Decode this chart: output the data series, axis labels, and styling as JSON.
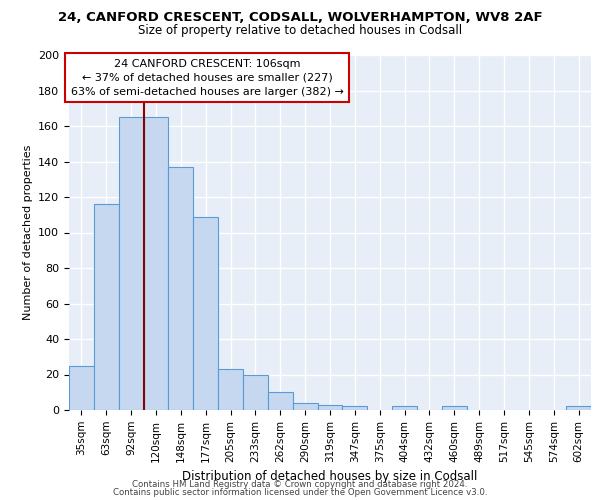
{
  "title_line1": "24, CANFORD CRESCENT, CODSALL, WOLVERHAMPTON, WV8 2AF",
  "title_line2": "Size of property relative to detached houses in Codsall",
  "bar_labels": [
    "35sqm",
    "63sqm",
    "92sqm",
    "120sqm",
    "148sqm",
    "177sqm",
    "205sqm",
    "233sqm",
    "262sqm",
    "290sqm",
    "319sqm",
    "347sqm",
    "375sqm",
    "404sqm",
    "432sqm",
    "460sqm",
    "489sqm",
    "517sqm",
    "545sqm",
    "574sqm",
    "602sqm"
  ],
  "bar_values": [
    25,
    116,
    165,
    165,
    137,
    109,
    23,
    20,
    10,
    4,
    3,
    2,
    0,
    2,
    0,
    2,
    0,
    0,
    0,
    0,
    2
  ],
  "bar_color": "#c5d8f0",
  "bar_edge_color": "#5b9bd5",
  "vline_x_index": 3,
  "vline_color": "#8b0000",
  "ylabel": "Number of detached properties",
  "xlabel": "Distribution of detached houses by size in Codsall",
  "ylim": [
    0,
    200
  ],
  "yticks": [
    0,
    20,
    40,
    60,
    80,
    100,
    120,
    140,
    160,
    180,
    200
  ],
  "annotation_title": "24 CANFORD CRESCENT: 106sqm",
  "annotation_line2": "← 37% of detached houses are smaller (227)",
  "annotation_line3": "63% of semi-detached houses are larger (382) →",
  "annotation_box_color": "#ffffff",
  "annotation_box_edge": "#cc0000",
  "footer_line1": "Contains HM Land Registry data © Crown copyright and database right 2024.",
  "footer_line2": "Contains public sector information licensed under the Open Government Licence v3.0.",
  "background_color": "#e8eef7",
  "grid_color": "#ffffff",
  "fig_bg_color": "#ffffff"
}
